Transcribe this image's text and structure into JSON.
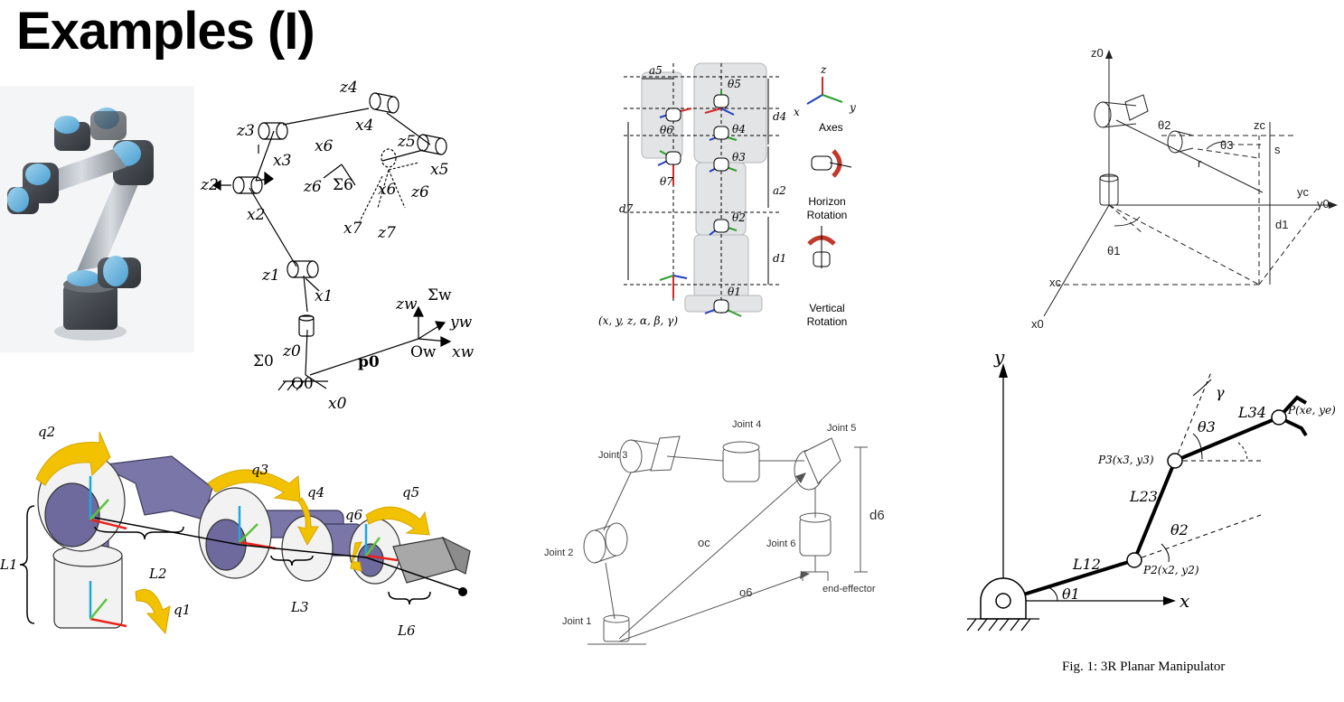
{
  "slide": {
    "title": "Examples (I)"
  },
  "panel_frames": {
    "labels": [
      "z4",
      "x4",
      "z3",
      "x3",
      "x6",
      "z5",
      "x5",
      "z6",
      "Σ6",
      "x6",
      "z6",
      "z2",
      "x2",
      "x7",
      "z7",
      "z1",
      "x1",
      "zw",
      "Σw",
      "yw",
      "z0",
      "Σ0",
      "Ow",
      "xw",
      "p0",
      "O0",
      "x0"
    ]
  },
  "panel_humanoid": {
    "labels": [
      "a5",
      "θ5",
      "θ6",
      "d4",
      "θ4",
      "θ3",
      "θ7",
      "a2",
      "d7",
      "θ2",
      "d1",
      "θ1",
      "(x, y, z, α, β, γ)"
    ],
    "legend": {
      "axes_title": "Axes",
      "axis_x": "x",
      "axis_y": "y",
      "axis_z": "z",
      "horizon": "Horizon\nRotation",
      "vertical": "Vertical\nRotation"
    },
    "colors": {
      "x": "#d62728",
      "y": "#2ca02c",
      "z": "#1f3fbf",
      "rot": "#c0392b"
    }
  },
  "panel_stanford": {
    "labels": [
      "z0",
      "θ2",
      "zc",
      "θ3",
      "s",
      "r",
      "yc",
      "y0",
      "d1",
      "θ1",
      "xc",
      "x0"
    ]
  },
  "panel_links": {
    "labels": [
      "q2",
      "q3",
      "q4",
      "q5",
      "q6",
      "L1",
      "L2",
      "L3",
      "L6",
      "q1"
    ],
    "colors": {
      "link": "#6e6a9e",
      "arrow": "#f2c200",
      "axis_red": "#e8231b",
      "axis_green": "#5cc33a",
      "axis_blue": "#1fa7e0"
    }
  },
  "panel_joints": {
    "labels": [
      "Joint 3",
      "Joint 4",
      "Joint 5",
      "Joint 2",
      "Joint 6",
      "Joint 1",
      "oc",
      "o6",
      "d6",
      "end-effector"
    ]
  },
  "panel_planar": {
    "labels": [
      "y",
      "x",
      "γ",
      "L34",
      "P(xe, ye)",
      "θ3",
      "P3(x3, y3)",
      "L23",
      "θ2",
      "L12",
      "P2(x2, y2)",
      "θ1"
    ],
    "caption": "Fig. 1: 3R Planar Manipulator"
  }
}
